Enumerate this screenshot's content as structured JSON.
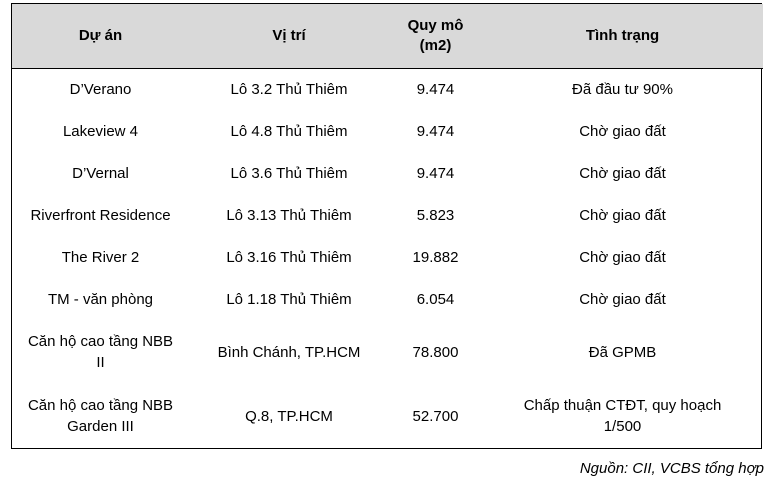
{
  "table": {
    "headers": {
      "project": "Dự án",
      "location": "Vị trí",
      "scale_line1": "Quy mô",
      "scale_line2": "(m2)",
      "status": "Tình trạng"
    },
    "rows": [
      {
        "project": "D’Verano",
        "location": "Lô 3.2 Thủ Thiêm",
        "scale": "9.474",
        "status": "Đã đầu tư 90%"
      },
      {
        "project": "Lakeview 4",
        "location": "Lô 4.8 Thủ Thiêm",
        "scale": "9.474",
        "status": "Chờ giao đất"
      },
      {
        "project": "D’Vernal",
        "location": "Lô 3.6 Thủ Thiêm",
        "scale": "9.474",
        "status": "Chờ giao đất"
      },
      {
        "project": "Riverfront Residence",
        "location": "Lô 3.13 Thủ Thiêm",
        "scale": "5.823",
        "status": "Chờ giao đất"
      },
      {
        "project": "The River 2",
        "location": "Lô 3.16 Thủ Thiêm",
        "scale": "19.882",
        "status": "Chờ giao đất"
      },
      {
        "project": "TM - văn phòng",
        "location": "Lô 1.18 Thủ Thiêm",
        "scale": "6.054",
        "status": "Chờ giao đất"
      },
      {
        "project_line1": "Căn hộ cao tầng NBB",
        "project_line2": "II",
        "location": "Bình Chánh, TP.HCM",
        "scale": "78.800",
        "status": "Đã GPMB"
      },
      {
        "project_line1": "Căn hộ cao tầng NBB",
        "project_line2": "Garden III",
        "location": "Q.8, TP.HCM",
        "scale": "52.700",
        "status_line1": "Chấp thuận CTĐT, quy hoạch",
        "status_line2": "1/500"
      }
    ]
  },
  "source": "Nguồn: CII, VCBS tổng hợp"
}
